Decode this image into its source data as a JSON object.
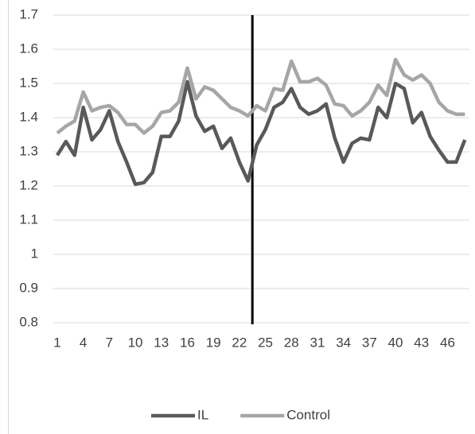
{
  "chart_data": {
    "type": "line",
    "categories": [
      1,
      null,
      null,
      4,
      null,
      null,
      7,
      null,
      null,
      10,
      null,
      null,
      13,
      null,
      null,
      16,
      null,
      null,
      19,
      null,
      null,
      22,
      null,
      null,
      25,
      null,
      null,
      28,
      null,
      null,
      31,
      null,
      null,
      34,
      null,
      null,
      37,
      null,
      null,
      40,
      null,
      null,
      43,
      null,
      null,
      46,
      null,
      null
    ],
    "series": [
      {
        "name": "IL",
        "color": "#595959",
        "values": [
          1.29,
          1.33,
          1.29,
          1.43,
          1.335,
          1.365,
          1.42,
          1.33,
          1.27,
          1.205,
          1.21,
          1.24,
          1.345,
          1.345,
          1.39,
          1.505,
          1.405,
          1.36,
          1.375,
          1.31,
          1.34,
          1.27,
          1.215,
          1.32,
          1.365,
          1.43,
          1.445,
          1.485,
          1.43,
          1.41,
          1.42,
          1.44,
          1.34,
          1.27,
          1.325,
          1.34,
          1.335,
          1.43,
          1.4,
          1.5,
          1.485,
          1.385,
          1.415,
          1.345,
          1.305,
          1.27,
          1.27,
          1.335
        ]
      },
      {
        "name": "Control",
        "color": "#a6a6a6",
        "values": [
          1.355,
          1.375,
          1.39,
          1.475,
          1.42,
          1.43,
          1.435,
          1.415,
          1.38,
          1.38,
          1.355,
          1.375,
          1.415,
          1.42,
          1.445,
          1.545,
          1.455,
          1.49,
          1.48,
          1.455,
          1.43,
          1.42,
          1.405,
          1.435,
          1.42,
          1.485,
          1.48,
          1.565,
          1.505,
          1.505,
          1.515,
          1.495,
          1.44,
          1.435,
          1.405,
          1.42,
          1.445,
          1.495,
          1.465,
          1.57,
          1.525,
          1.51,
          1.525,
          1.5,
          1.445,
          1.42,
          1.41,
          1.41
        ]
      }
    ],
    "ylim": [
      0.8,
      1.7
    ],
    "yticks": [
      0.8,
      0.9,
      1,
      1.1,
      1.2,
      1.3,
      1.4,
      1.5,
      1.6,
      1.7
    ],
    "grid": true,
    "legend": "bottom"
  }
}
